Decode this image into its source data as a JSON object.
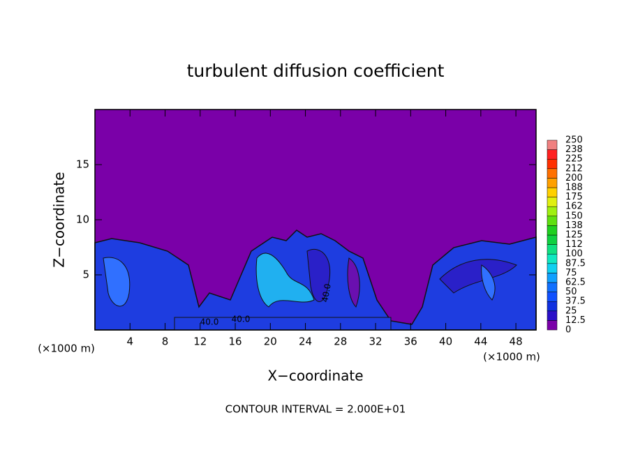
{
  "chart_data": {
    "type": "contour",
    "title": "turbulent diffusion coefficient",
    "x_label": "X−coordinate",
    "y_label": "Z−coordinate",
    "x_unit": "(×1000 m)",
    "footer": "CONTOUR INTERVAL = 2.000E+01",
    "contour_labels": [
      "40.0",
      "40.0",
      "40.0"
    ],
    "xlim": [
      0,
      50.3
    ],
    "xticks": [
      4,
      8,
      12,
      16,
      20,
      24,
      28,
      32,
      36,
      40,
      44,
      48
    ],
    "ylim": [
      0,
      20
    ],
    "yticks": [
      5,
      10,
      15
    ],
    "colorbar": {
      "levels": [
        0,
        12.5,
        25,
        37.5,
        50,
        62.5,
        75,
        87.5,
        100,
        112,
        125,
        138,
        150,
        162,
        175,
        188,
        200,
        212,
        225,
        238,
        250
      ],
      "colors": [
        "#7a00a8",
        "#2a10c8",
        "#1030e0",
        "#1050ff",
        "#1070ff",
        "#10a0ff",
        "#10d0f0",
        "#10e8c0",
        "#10e080",
        "#10d040",
        "#20d020",
        "#60e010",
        "#a0f010",
        "#e0f010",
        "#ffd000",
        "#ffa000",
        "#ff7000",
        "#ff3000",
        "#ff2020",
        "#f08080"
      ]
    }
  }
}
